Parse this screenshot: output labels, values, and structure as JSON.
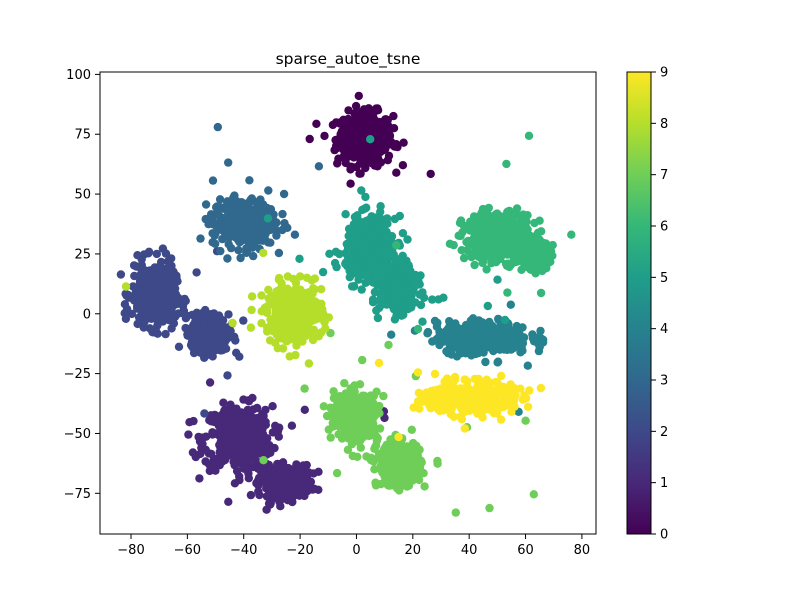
{
  "chart_data": {
    "type": "scatter",
    "title": "sparse_autoe_tsne",
    "xlabel": "",
    "ylabel": "",
    "xlim": [
      -91,
      85
    ],
    "ylim": [
      -92,
      101
    ],
    "xticks": [
      -80,
      -60,
      -40,
      -20,
      0,
      20,
      40,
      60,
      80
    ],
    "yticks": [
      -75,
      -50,
      -25,
      0,
      25,
      50,
      75,
      100
    ],
    "grid": false,
    "legend": "none",
    "colormap": "viridis",
    "colorbar": {
      "range": [
        0,
        9
      ],
      "ticks": [
        0,
        1,
        2,
        3,
        4,
        5,
        6,
        7,
        8,
        9
      ]
    },
    "clusters": [
      {
        "label": 0,
        "color": "#440154",
        "center": [
          3,
          73
        ],
        "spread": [
          9,
          10
        ]
      },
      {
        "label": 1,
        "color": "#482878",
        "center": [
          -42,
          -52
        ],
        "spread": [
          11,
          12
        ]
      },
      {
        "label": 1,
        "color": "#482878",
        "center": [
          -25,
          -70
        ],
        "spread": [
          8,
          6
        ]
      },
      {
        "label": 2,
        "color": "#3e4989",
        "center": [
          -72,
          8
        ],
        "spread": [
          7,
          12
        ]
      },
      {
        "label": 2,
        "color": "#3e4989",
        "center": [
          -52,
          -8
        ],
        "spread": [
          6,
          7
        ]
      },
      {
        "label": 3,
        "color": "#31688e",
        "center": [
          -40,
          38
        ],
        "spread": [
          10,
          9
        ]
      },
      {
        "label": 4,
        "color": "#26828e",
        "center": [
          45,
          -10
        ],
        "spread": [
          15,
          6
        ]
      },
      {
        "label": 5,
        "color": "#1f9e89",
        "center": [
          5,
          27
        ],
        "spread": [
          8,
          12
        ]
      },
      {
        "label": 5,
        "color": "#1f9e89",
        "center": [
          15,
          10
        ],
        "spread": [
          6,
          8
        ]
      },
      {
        "label": 6,
        "color": "#35b779",
        "center": [
          50,
          32
        ],
        "spread": [
          11,
          9
        ]
      },
      {
        "label": 6,
        "color": "#35b779",
        "center": [
          63,
          25
        ],
        "spread": [
          5,
          5
        ]
      },
      {
        "label": 7,
        "color": "#6ece58",
        "center": [
          0,
          -43
        ],
        "spread": [
          7,
          9
        ]
      },
      {
        "label": 7,
        "color": "#6ece58",
        "center": [
          15,
          -63
        ],
        "spread": [
          7,
          8
        ]
      },
      {
        "label": 8,
        "color": "#b5de2b",
        "center": [
          -22,
          0
        ],
        "spread": [
          9,
          11
        ]
      },
      {
        "label": 9,
        "color": "#fde725",
        "center": [
          40,
          -35
        ],
        "spread": [
          14,
          6
        ]
      }
    ]
  }
}
